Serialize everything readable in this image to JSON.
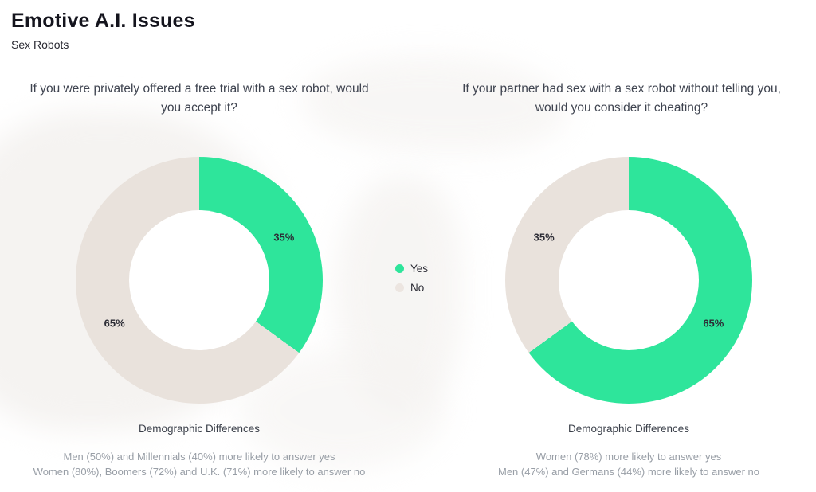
{
  "page": {
    "title": "Emotive A.I. Issues",
    "subtitle": "Sex Robots"
  },
  "colors": {
    "yes": "#2ee59b",
    "no": "#e9e2dc"
  },
  "legend": {
    "items": [
      {
        "label": "Yes",
        "color": "#2ee59b"
      },
      {
        "label": "No",
        "color": "#ece5e0"
      }
    ]
  },
  "chart_data": [
    {
      "type": "pie",
      "variant": "donut",
      "title": "If you were privately offered a free trial with a sex robot, would you accept it?",
      "categories": [
        "Yes",
        "No"
      ],
      "values": [
        35,
        65
      ],
      "slices": [
        {
          "label": "Yes",
          "value": 35,
          "color": "#2ee59b",
          "data_label": "35%"
        },
        {
          "label": "No",
          "value": 65,
          "color": "#e9e2dc",
          "data_label": "65%"
        }
      ],
      "legend_position": "right",
      "footer_heading": "Demographic Differences",
      "footer_line1": "Men (50%) and Millennials (40%) more likely to answer yes",
      "footer_line2": "Women (80%), Boomers (72%) and U.K. (71%) more likely to answer no"
    },
    {
      "type": "pie",
      "variant": "donut",
      "title": "If your partner had sex with a sex robot without telling you, would you consider it cheating?",
      "categories": [
        "Yes",
        "No"
      ],
      "values": [
        65,
        35
      ],
      "slices": [
        {
          "label": "Yes",
          "value": 65,
          "color": "#2ee59b",
          "data_label": "65%"
        },
        {
          "label": "No",
          "value": 35,
          "color": "#e9e2dc",
          "data_label": "35%"
        }
      ],
      "legend_position": "left",
      "footer_heading": "Demographic Differences",
      "footer_line1": "Women (78%) more likely to answer yes",
      "footer_line2": "Men (47%) and Germans (44%) more likely to answer no"
    }
  ]
}
